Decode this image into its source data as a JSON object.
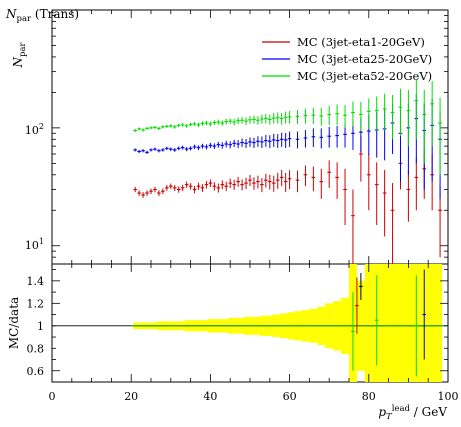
{
  "plot_title": "N_par (Trans)",
  "chart_data": [
    {
      "type": "scatter",
      "panel": "main",
      "title": "N_par (Trans)",
      "ylabel": "N_par",
      "yscale": "log",
      "ylim": [
        7,
        1000
      ],
      "xlim": [
        0,
        100
      ],
      "y_ticks": [
        10,
        100
      ],
      "y_tick_labels": [
        "10¹",
        "10²"
      ],
      "legend_position": "top-right",
      "colors": {
        "eta1": "#cc0000",
        "eta25": "#0000ee",
        "eta52": "#00dd00"
      },
      "x": [
        21,
        22,
        23,
        24,
        25,
        26,
        27,
        28,
        29,
        30,
        31,
        32,
        33,
        34,
        35,
        36,
        37,
        38,
        39,
        40,
        41,
        42,
        43,
        44,
        45,
        46,
        47,
        48,
        49,
        50,
        51,
        52,
        53,
        54,
        55,
        56,
        57,
        58,
        59,
        60,
        62,
        64,
        66,
        68,
        70,
        72,
        74,
        76,
        78,
        80,
        82,
        84,
        86,
        88,
        90,
        92,
        94,
        96,
        98
      ],
      "series": [
        {
          "name": "MC (3jet-eta1-20GeV)",
          "values": [
            30,
            28,
            27,
            28,
            29,
            30,
            28,
            29,
            31,
            32,
            31,
            30,
            31,
            33,
            32,
            30,
            32,
            31,
            33,
            34,
            32,
            31,
            33,
            32,
            34,
            33,
            35,
            33,
            34,
            36,
            34,
            35,
            33,
            36,
            35,
            34,
            36,
            38,
            35,
            37,
            36,
            40,
            38,
            35,
            42,
            38,
            30,
            18,
            60,
            40,
            33,
            28,
            20,
            50,
            30,
            38,
            45,
            40,
            20
          ],
          "yerr": [
            1.5,
            1.5,
            1.5,
            1.5,
            1.5,
            1.6,
            1.6,
            1.6,
            1.7,
            1.7,
            1.8,
            1.8,
            1.9,
            2,
            2,
            2.1,
            2.2,
            2.3,
            2.4,
            2.5,
            2.6,
            2.7,
            2.8,
            3,
            3.1,
            3.2,
            3.4,
            3.5,
            3.7,
            3.9,
            4.1,
            4.3,
            4.5,
            4.8,
            5,
            5.3,
            5.6,
            6,
            6.4,
            6.8,
            7.5,
            8,
            9,
            10,
            11,
            13,
            15,
            12,
            25,
            20,
            18,
            16,
            14,
            20,
            14,
            18,
            20,
            20,
            12
          ]
        },
        {
          "name": "MC (3jet-eta25-20GeV)",
          "values": [
            65,
            63,
            64,
            62,
            65,
            66,
            64,
            65,
            67,
            66,
            65,
            67,
            68,
            66,
            67,
            69,
            68,
            70,
            69,
            71,
            70,
            72,
            71,
            73,
            72,
            74,
            73,
            75,
            74,
            76,
            75,
            77,
            76,
            78,
            77,
            79,
            78,
            80,
            79,
            81,
            80,
            82,
            84,
            83,
            85,
            86,
            88,
            90,
            92,
            94,
            96,
            98,
            110,
            90,
            100,
            120,
            95,
            105,
            80
          ],
          "yerr": [
            2,
            2,
            2,
            2,
            2,
            2.1,
            2.1,
            2.2,
            2.2,
            2.3,
            2.4,
            2.5,
            2.6,
            2.7,
            2.8,
            3,
            3.1,
            3.3,
            3.5,
            3.7,
            3.9,
            4.1,
            4.4,
            4.7,
            5,
            5.3,
            5.7,
            6.1,
            6.5,
            7,
            7.5,
            8,
            8.5,
            9,
            9.6,
            10,
            10.5,
            11,
            11.5,
            12,
            13,
            14,
            15,
            16,
            17,
            18,
            20,
            25,
            30,
            35,
            40,
            45,
            50,
            55,
            60,
            70,
            65,
            70,
            55
          ]
        },
        {
          "name": "MC (3jet-eta52-20GeV)",
          "values": [
            95,
            98,
            96,
            99,
            100,
            101,
            99,
            102,
            103,
            104,
            102,
            105,
            106,
            104,
            107,
            108,
            106,
            109,
            110,
            108,
            111,
            112,
            110,
            113,
            114,
            112,
            115,
            116,
            114,
            117,
            118,
            116,
            119,
            120,
            118,
            121,
            122,
            120,
            123,
            124,
            125,
            127,
            128,
            126,
            130,
            132,
            128,
            135,
            130,
            138,
            140,
            145,
            135,
            150,
            140,
            170,
            130,
            160,
            110
          ],
          "yerr": [
            3,
            3,
            3,
            3,
            3,
            3.1,
            3.1,
            3.2,
            3.3,
            3.4,
            3.5,
            3.6,
            3.7,
            3.8,
            4,
            4.2,
            4.4,
            4.6,
            4.8,
            5,
            5.3,
            5.6,
            5.9,
            6.2,
            6.6,
            7,
            7.4,
            7.8,
            8.2,
            8.7,
            9.2,
            9.7,
            10.3,
            11,
            11.6,
            12.3,
            13,
            13.8,
            14.6,
            15.5,
            17,
            18.5,
            20,
            22,
            24,
            26,
            28,
            32,
            36,
            40,
            45,
            50,
            55,
            65,
            70,
            90,
            80,
            90,
            70
          ]
        }
      ]
    },
    {
      "type": "scatter",
      "panel": "ratio",
      "ylabel": "MC/data",
      "xlabel": "p_T^lead / GeV",
      "xlim": [
        0,
        100
      ],
      "ylim": [
        0.5,
        1.55
      ],
      "x_ticks": [
        0,
        20,
        40,
        60,
        80,
        100
      ],
      "y_ticks": [
        0.6,
        0.8,
        1,
        1.2,
        1.4
      ],
      "reference_line": 1,
      "band_color": "#ffff00",
      "line_color": "#008800",
      "x": [
        21,
        22,
        23,
        24,
        25,
        26,
        27,
        28,
        29,
        30,
        31,
        32,
        33,
        34,
        35,
        36,
        37,
        38,
        39,
        40,
        41,
        42,
        43,
        44,
        45,
        46,
        47,
        48,
        49,
        50,
        51,
        52,
        53,
        54,
        55,
        56,
        57,
        58,
        59,
        60,
        62,
        64,
        66,
        68,
        70,
        72,
        74,
        76,
        78,
        80,
        82,
        84,
        86,
        88,
        90,
        92,
        94,
        96,
        98
      ],
      "band_halfwidth": [
        0.03,
        0.03,
        0.03,
        0.03,
        0.03,
        0.03,
        0.04,
        0.04,
        0.04,
        0.04,
        0.04,
        0.04,
        0.04,
        0.05,
        0.05,
        0.05,
        0.05,
        0.05,
        0.05,
        0.06,
        0.06,
        0.06,
        0.06,
        0.06,
        0.07,
        0.07,
        0.07,
        0.07,
        0.08,
        0.08,
        0.08,
        0.08,
        0.09,
        0.09,
        0.09,
        0.1,
        0.1,
        0.11,
        0.11,
        0.12,
        0.13,
        0.14,
        0.15,
        0.17,
        0.2,
        0.22,
        0.25,
        0.55,
        0.4,
        0.55,
        0.55,
        0.55,
        0.55,
        0.55,
        0.55,
        0.55,
        0.55,
        0.55,
        0.55
      ],
      "points": [
        {
          "x": 76,
          "y": 0.95,
          "err": 0.35,
          "color": "#00dd00"
        },
        {
          "x": 77,
          "y": 1.18,
          "err": 0.25,
          "color": "#cc0000"
        },
        {
          "x": 78,
          "y": 1.35,
          "err": 0.12,
          "color": "#000000"
        },
        {
          "x": 82,
          "y": 1.05,
          "err": 0.4,
          "color": "#00dd00"
        },
        {
          "x": 92,
          "y": 1.0,
          "err": 0.45,
          "color": "#00dd00"
        },
        {
          "x": 94,
          "y": 1.1,
          "err": 0.4,
          "color": "#0000ee"
        }
      ]
    }
  ]
}
